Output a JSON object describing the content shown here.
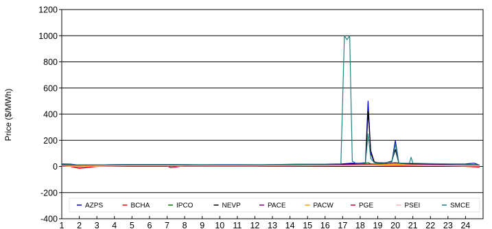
{
  "chart_data": {
    "type": "line",
    "title": "",
    "xlabel": "",
    "ylabel": "Price ($/MWh)",
    "ylim": [
      -400,
      1200
    ],
    "yticks": [
      -400,
      -200,
      0,
      200,
      400,
      600,
      800,
      1000,
      1200
    ],
    "xlim": [
      1,
      25
    ],
    "xticks": [
      1,
      2,
      3,
      4,
      5,
      6,
      7,
      8,
      9,
      10,
      11,
      12,
      13,
      14,
      15,
      16,
      17,
      18,
      19,
      20,
      21,
      22,
      23,
      24
    ],
    "grid": "horizontal",
    "legend": "bottom-inside",
    "series": [
      {
        "name": "AZPS",
        "color": "#0000cc",
        "x": [
          1,
          1.5,
          2,
          3,
          4,
          5,
          6,
          7,
          8,
          9,
          10,
          11,
          12,
          13,
          14,
          15,
          16,
          17,
          17.5,
          18,
          18.3,
          18.45,
          18.6,
          18.8,
          19,
          19.5,
          19.8,
          20,
          20.2,
          21,
          22,
          23,
          24,
          24.5,
          24.8
        ],
        "values": [
          20,
          18,
          10,
          12,
          14,
          15,
          15,
          15,
          14,
          13,
          14,
          14,
          13,
          14,
          16,
          18,
          18,
          20,
          25,
          25,
          30,
          500,
          100,
          30,
          25,
          30,
          35,
          200,
          25,
          22,
          20,
          18,
          20,
          25,
          10
        ]
      },
      {
        "name": "BCHA",
        "color": "#ff0000",
        "x": [
          1,
          1.5,
          2,
          3,
          4,
          5,
          6,
          7,
          8,
          9,
          10,
          11,
          12,
          13,
          14,
          15,
          16,
          17,
          18,
          19,
          20,
          21,
          22,
          23,
          24,
          24.8
        ],
        "values": [
          5,
          0,
          -15,
          0,
          2,
          4,
          5,
          5,
          4,
          3,
          3,
          3,
          4,
          4,
          5,
          5,
          5,
          8,
          10,
          8,
          6,
          5,
          5,
          4,
          0,
          -5
        ]
      },
      {
        "name": "IPCO",
        "color": "#008000",
        "x": [
          1,
          2,
          3,
          4,
          5,
          6,
          7,
          8,
          9,
          10,
          11,
          12,
          13,
          14,
          15,
          16,
          17,
          18,
          18.45,
          18.6,
          19,
          20,
          21,
          22,
          23,
          24,
          24.8
        ],
        "values": [
          8,
          -5,
          5,
          6,
          8,
          8,
          8,
          7,
          7,
          7,
          7,
          7,
          8,
          8,
          10,
          10,
          12,
          15,
          30,
          20,
          15,
          30,
          18,
          15,
          12,
          10,
          8
        ]
      },
      {
        "name": "NEVP",
        "color": "#000000",
        "x": [
          1,
          2,
          3,
          4,
          5,
          6,
          7,
          8,
          9,
          10,
          11,
          12,
          13,
          14,
          15,
          16,
          17,
          18,
          18.3,
          18.45,
          18.6,
          18.8,
          19,
          19.5,
          19.8,
          20,
          20.2,
          21,
          22,
          23,
          24,
          24.8
        ],
        "values": [
          15,
          12,
          12,
          13,
          14,
          14,
          14,
          13,
          12,
          12,
          12,
          12,
          13,
          14,
          15,
          16,
          18,
          22,
          30,
          420,
          120,
          35,
          28,
          30,
          40,
          130,
          25,
          22,
          20,
          18,
          18,
          12
        ]
      },
      {
        "name": "PACE",
        "color": "#800080",
        "x": [
          1,
          2,
          3,
          4,
          5,
          6,
          7,
          8,
          9,
          10,
          11,
          12,
          13,
          14,
          15,
          16,
          17,
          18,
          19,
          20,
          21,
          22,
          23,
          24,
          24.8
        ],
        "values": [
          10,
          8,
          8,
          9,
          10,
          10,
          10,
          9,
          9,
          9,
          9,
          9,
          10,
          10,
          12,
          12,
          14,
          18,
          20,
          25,
          15,
          14,
          12,
          12,
          10
        ]
      },
      {
        "name": "PACW",
        "color": "#ff9900",
        "x": [
          1,
          2,
          3,
          4,
          5,
          6,
          7,
          8,
          9,
          10,
          11,
          12,
          13,
          14,
          15,
          16,
          17,
          18,
          19,
          20,
          21,
          22,
          23,
          24,
          24.8
        ],
        "values": [
          6,
          4,
          5,
          6,
          7,
          7,
          7,
          6,
          6,
          6,
          6,
          6,
          7,
          7,
          8,
          8,
          10,
          12,
          14,
          16,
          12,
          10,
          9,
          8,
          6
        ]
      },
      {
        "name": "PGE",
        "color": "#cc0033",
        "x": [
          1,
          2,
          3,
          4,
          5,
          6,
          7,
          7.2,
          8,
          9,
          10,
          11,
          12,
          13,
          14,
          15,
          16,
          17,
          18,
          19,
          20,
          21,
          22,
          23,
          24,
          24.8
        ],
        "values": [
          4,
          -3,
          2,
          3,
          4,
          4,
          4,
          -10,
          4,
          3,
          3,
          3,
          4,
          4,
          5,
          5,
          6,
          8,
          10,
          10,
          10,
          8,
          6,
          5,
          4,
          -2
        ]
      },
      {
        "name": "PSEI",
        "color": "#ffb6c1",
        "x": [
          1,
          2,
          3,
          4,
          5,
          6,
          7,
          8,
          9,
          10,
          11,
          12,
          13,
          14,
          15,
          16,
          17,
          18,
          19,
          20,
          21,
          22,
          23,
          24,
          24.8
        ],
        "values": [
          3,
          0,
          2,
          3,
          4,
          4,
          4,
          3,
          3,
          3,
          3,
          3,
          4,
          4,
          5,
          5,
          6,
          8,
          9,
          10,
          8,
          6,
          5,
          4,
          3
        ]
      },
      {
        "name": "SMCE",
        "color": "#1f8080",
        "x": [
          1,
          2,
          3,
          4,
          5,
          6,
          7,
          8,
          9,
          10,
          11,
          12,
          13,
          14,
          15,
          16,
          16.9,
          17.1,
          17.25,
          17.4,
          17.55,
          17.75,
          18,
          18.3,
          18.45,
          18.6,
          18.8,
          19,
          19.5,
          19.8,
          20,
          20.2,
          20.8,
          20.9,
          21,
          22,
          23,
          24,
          24.8
        ],
        "values": [
          18,
          12,
          12,
          13,
          14,
          14,
          14,
          14,
          13,
          13,
          13,
          13,
          14,
          15,
          18,
          18,
          20,
          1000,
          970,
          1000,
          40,
          25,
          20,
          30,
          250,
          60,
          30,
          25,
          30,
          35,
          170,
          25,
          25,
          70,
          25,
          22,
          20,
          18,
          12
        ]
      }
    ]
  }
}
